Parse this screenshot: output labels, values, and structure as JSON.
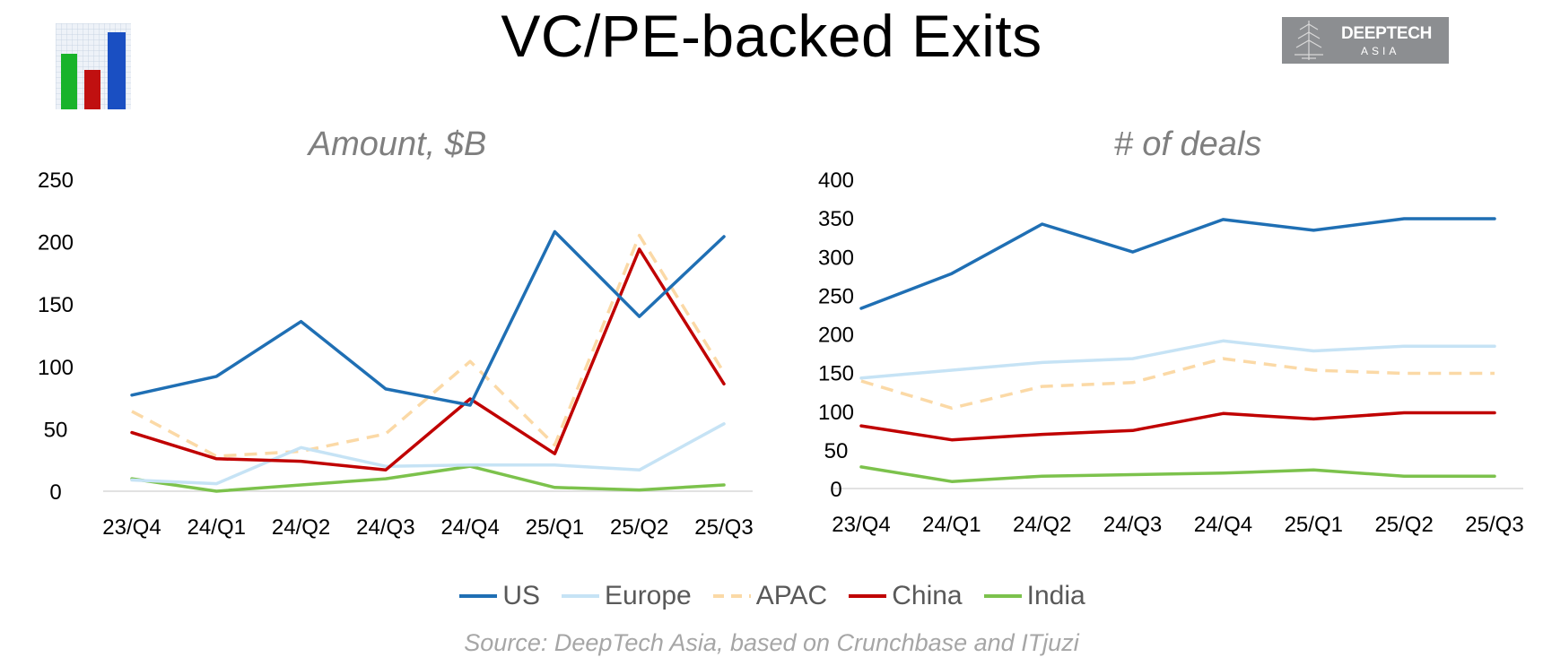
{
  "header": {
    "title": "VC/PE-backed Exits",
    "brand_line1": "DEEPTECH",
    "brand_line2": "ASIA",
    "source": "Source: DeepTech Asia, based on Crunchbase and ITjuzi"
  },
  "colors": {
    "US": "#1f6fb4",
    "Europe": "#c6e3f5",
    "APAC": "#fbd9a6",
    "China": "#c00000",
    "India": "#7cc24c"
  },
  "legend": [
    {
      "name": "US",
      "dashed": false
    },
    {
      "name": "Europe",
      "dashed": false
    },
    {
      "name": "APAC",
      "dashed": true
    },
    {
      "name": "China",
      "dashed": false
    },
    {
      "name": "India",
      "dashed": false
    }
  ],
  "chart_data": [
    {
      "type": "line",
      "title": "Amount, $B",
      "categories": [
        "23/Q4",
        "24/Q1",
        "24/Q2",
        "24/Q3",
        "24/Q4",
        "25/Q1",
        "25/Q2",
        "25/Q3"
      ],
      "ylim": [
        0,
        250
      ],
      "yticks": [
        0,
        50,
        100,
        150,
        200,
        250
      ],
      "series": [
        {
          "name": "US",
          "values": [
            77,
            92,
            136,
            82,
            69,
            208,
            140,
            204
          ]
        },
        {
          "name": "Europe",
          "values": [
            9,
            6,
            35,
            20,
            21,
            21,
            17,
            54
          ]
        },
        {
          "name": "APAC",
          "values": [
            64,
            28,
            32,
            46,
            104,
            37,
            205,
            95
          ]
        },
        {
          "name": "China",
          "values": [
            47,
            26,
            24,
            17,
            74,
            30,
            194,
            86
          ]
        },
        {
          "name": "India",
          "values": [
            10,
            0,
            5,
            10,
            20,
            3,
            1,
            5
          ]
        }
      ]
    },
    {
      "type": "line",
      "title": "# of deals",
      "categories": [
        "23/Q4",
        "24/Q1",
        "24/Q2",
        "24/Q3",
        "24/Q4",
        "25/Q1",
        "25/Q2",
        "25/Q3"
      ],
      "ylim": [
        0,
        400
      ],
      "yticks": [
        0,
        50,
        100,
        150,
        200,
        250,
        300,
        350,
        400
      ],
      "series": [
        {
          "name": "US",
          "values": [
            233,
            278,
            342,
            306,
            348,
            334,
            349,
            349
          ]
        },
        {
          "name": "Europe",
          "values": [
            143,
            153,
            163,
            168,
            191,
            178,
            184,
            184
          ]
        },
        {
          "name": "APAC",
          "values": [
            139,
            104,
            132,
            137,
            168,
            153,
            149,
            149
          ]
        },
        {
          "name": "China",
          "values": [
            81,
            63,
            70,
            75,
            97,
            90,
            98,
            98
          ]
        },
        {
          "name": "India",
          "values": [
            28,
            9,
            16,
            18,
            20,
            24,
            16,
            16
          ]
        }
      ]
    }
  ]
}
